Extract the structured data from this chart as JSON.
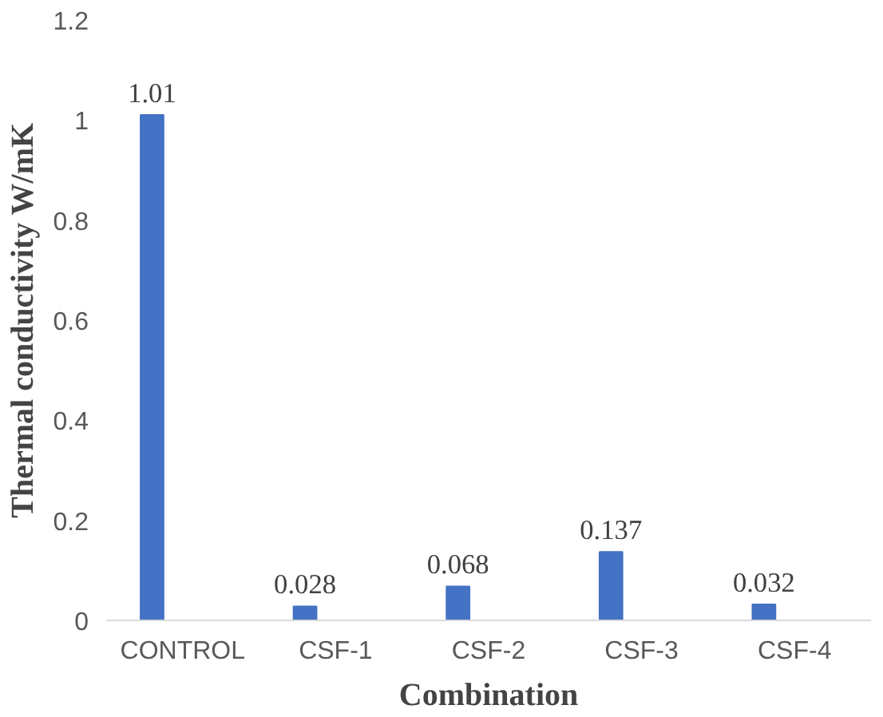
{
  "chart_data": {
    "type": "bar",
    "xlabel": "Combination",
    "ylabel": "Thermal conductivity W/mK",
    "categories": [
      "CONTROL",
      "CSF-1",
      "CSF-2",
      "CSF-3",
      "CSF-4"
    ],
    "values": [
      1.01,
      0.028,
      0.068,
      0.137,
      0.032
    ],
    "color": "#4472c4",
    "ylim": [
      0,
      1.2
    ],
    "yticks": [
      0,
      0.2,
      0.4,
      0.6,
      0.8,
      1,
      1.2
    ],
    "grid": false,
    "data_labels": true
  }
}
